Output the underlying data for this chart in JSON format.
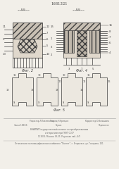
{
  "patent_number": "1681321",
  "bg_color": "#f2efe9",
  "line_color": "#404040",
  "fill_light": "#e0d8cc",
  "fill_hatch1": "#c8bfb0",
  "fill_hatch2": "#b0a898",
  "footer_color": "#666666"
}
